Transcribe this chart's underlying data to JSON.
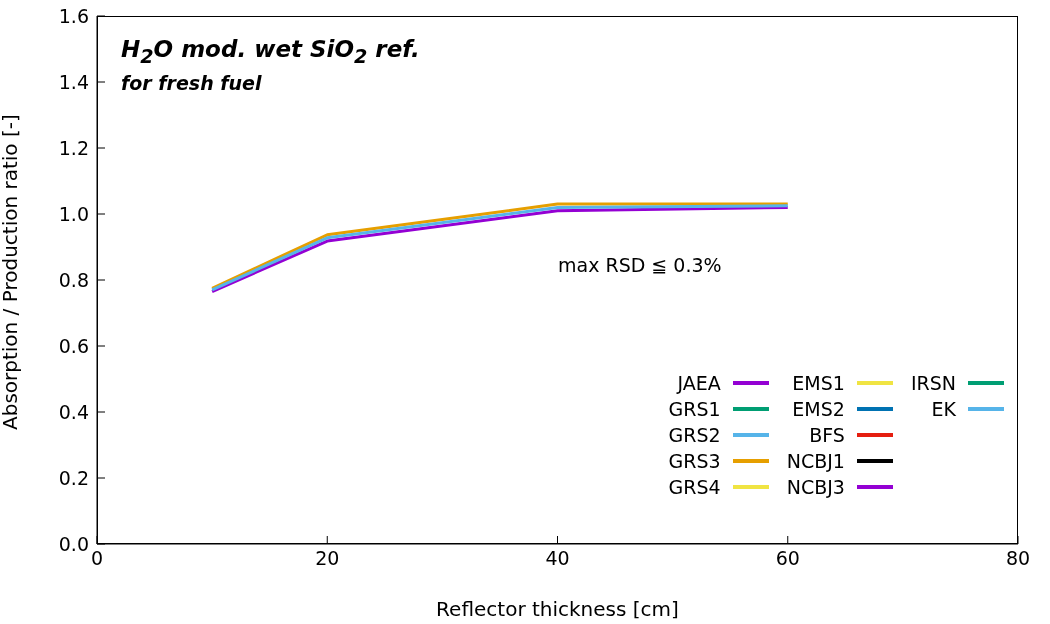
{
  "chart_data": {
    "type": "line",
    "title": "H$_{2}$O mod. wet SiO$_{2}$ ref.",
    "subtitle": "for fresh fuel",
    "xlabel": "Reflector thickness [cm]",
    "ylabel": "Absorption / Production ratio [-]",
    "annotations": [
      "max RSD ≦ 0.3%"
    ],
    "x": [
      10,
      20,
      40,
      60
    ],
    "xlim": [
      0,
      80
    ],
    "xticks": [
      0,
      20,
      40,
      60,
      80
    ],
    "ylim": [
      0,
      1.6
    ],
    "yticks": [
      {
        "value": 0,
        "label": "0.0"
      },
      0.2,
      0.4,
      0.6,
      0.8,
      {
        "value": 1,
        "label": "1.0"
      },
      1.2,
      1.4,
      1.6
    ],
    "grid": false,
    "legend": "bottom right",
    "marker": "none",
    "line_style": "solid",
    "series": [
      {
        "name": "JAEA",
        "color": "#9400d3",
        "values": [
          null,
          null,
          null,
          null
        ]
      },
      {
        "name": "GRS1",
        "color": "#009e73",
        "values": [
          null,
          null,
          null,
          null
        ]
      },
      {
        "name": "GRS2",
        "color": "#56b4e9",
        "values": [
          null,
          null,
          null,
          null
        ]
      },
      {
        "name": "GRS3",
        "color": "#e69f00",
        "values": [
          null,
          null,
          null,
          null
        ]
      },
      {
        "name": "GRS4",
        "color": "#f0e442",
        "values": [
          null,
          null,
          null,
          null
        ]
      },
      {
        "color": "#0072b2",
        "values": [
          null,
          null,
          null,
          null
        ]
      },
      {
        "color": "#e51e10",
        "values": [
          null,
          null,
          null,
          null
        ]
      },
      {
        "color": "#000000",
        "values": [
          null,
          null,
          null,
          null
        ]
      },
      {
        "color": "#9400d3",
        "values": [
          null,
          null,
          null,
          null
        ]
      },
      {
        "color": "#009e73",
        "values": [
          null,
          null,
          null,
          null
        ]
      },
      {
        "color": "#56b4e9",
        "values": [
          null,
          null,
          null,
          null
        ]
      },
      {
        "color": "#e69f00",
        "values": [
          0.775,
          0.937,
          1.03,
          1.03
        ]
      },
      {
        "name": "EMS1",
        "color": "#f0e442",
        "values": [
          null,
          null,
          null,
          null
        ]
      },
      {
        "name": "EMS2",
        "color": "#0072b2",
        "values": [
          null,
          null,
          null,
          null
        ]
      },
      {
        "name": "BFS",
        "color": "#e51e10",
        "values": [
          null,
          null,
          null,
          null
        ]
      },
      {
        "name": "NCBJ1",
        "color": "#000000",
        "values": [
          null,
          null,
          null,
          null
        ]
      },
      {
        "name": "NCBJ3",
        "color": "#9400d3",
        "values": [
          0.765,
          0.918,
          1.01,
          1.02
        ]
      },
      {
        "name": "IRSN",
        "color": "#009e73",
        "values": [
          null,
          null,
          null,
          null
        ]
      },
      {
        "name": "EK",
        "color": "#56b4e9",
        "values": [
          0.77,
          0.928,
          1.02,
          1.025
        ]
      }
    ]
  }
}
